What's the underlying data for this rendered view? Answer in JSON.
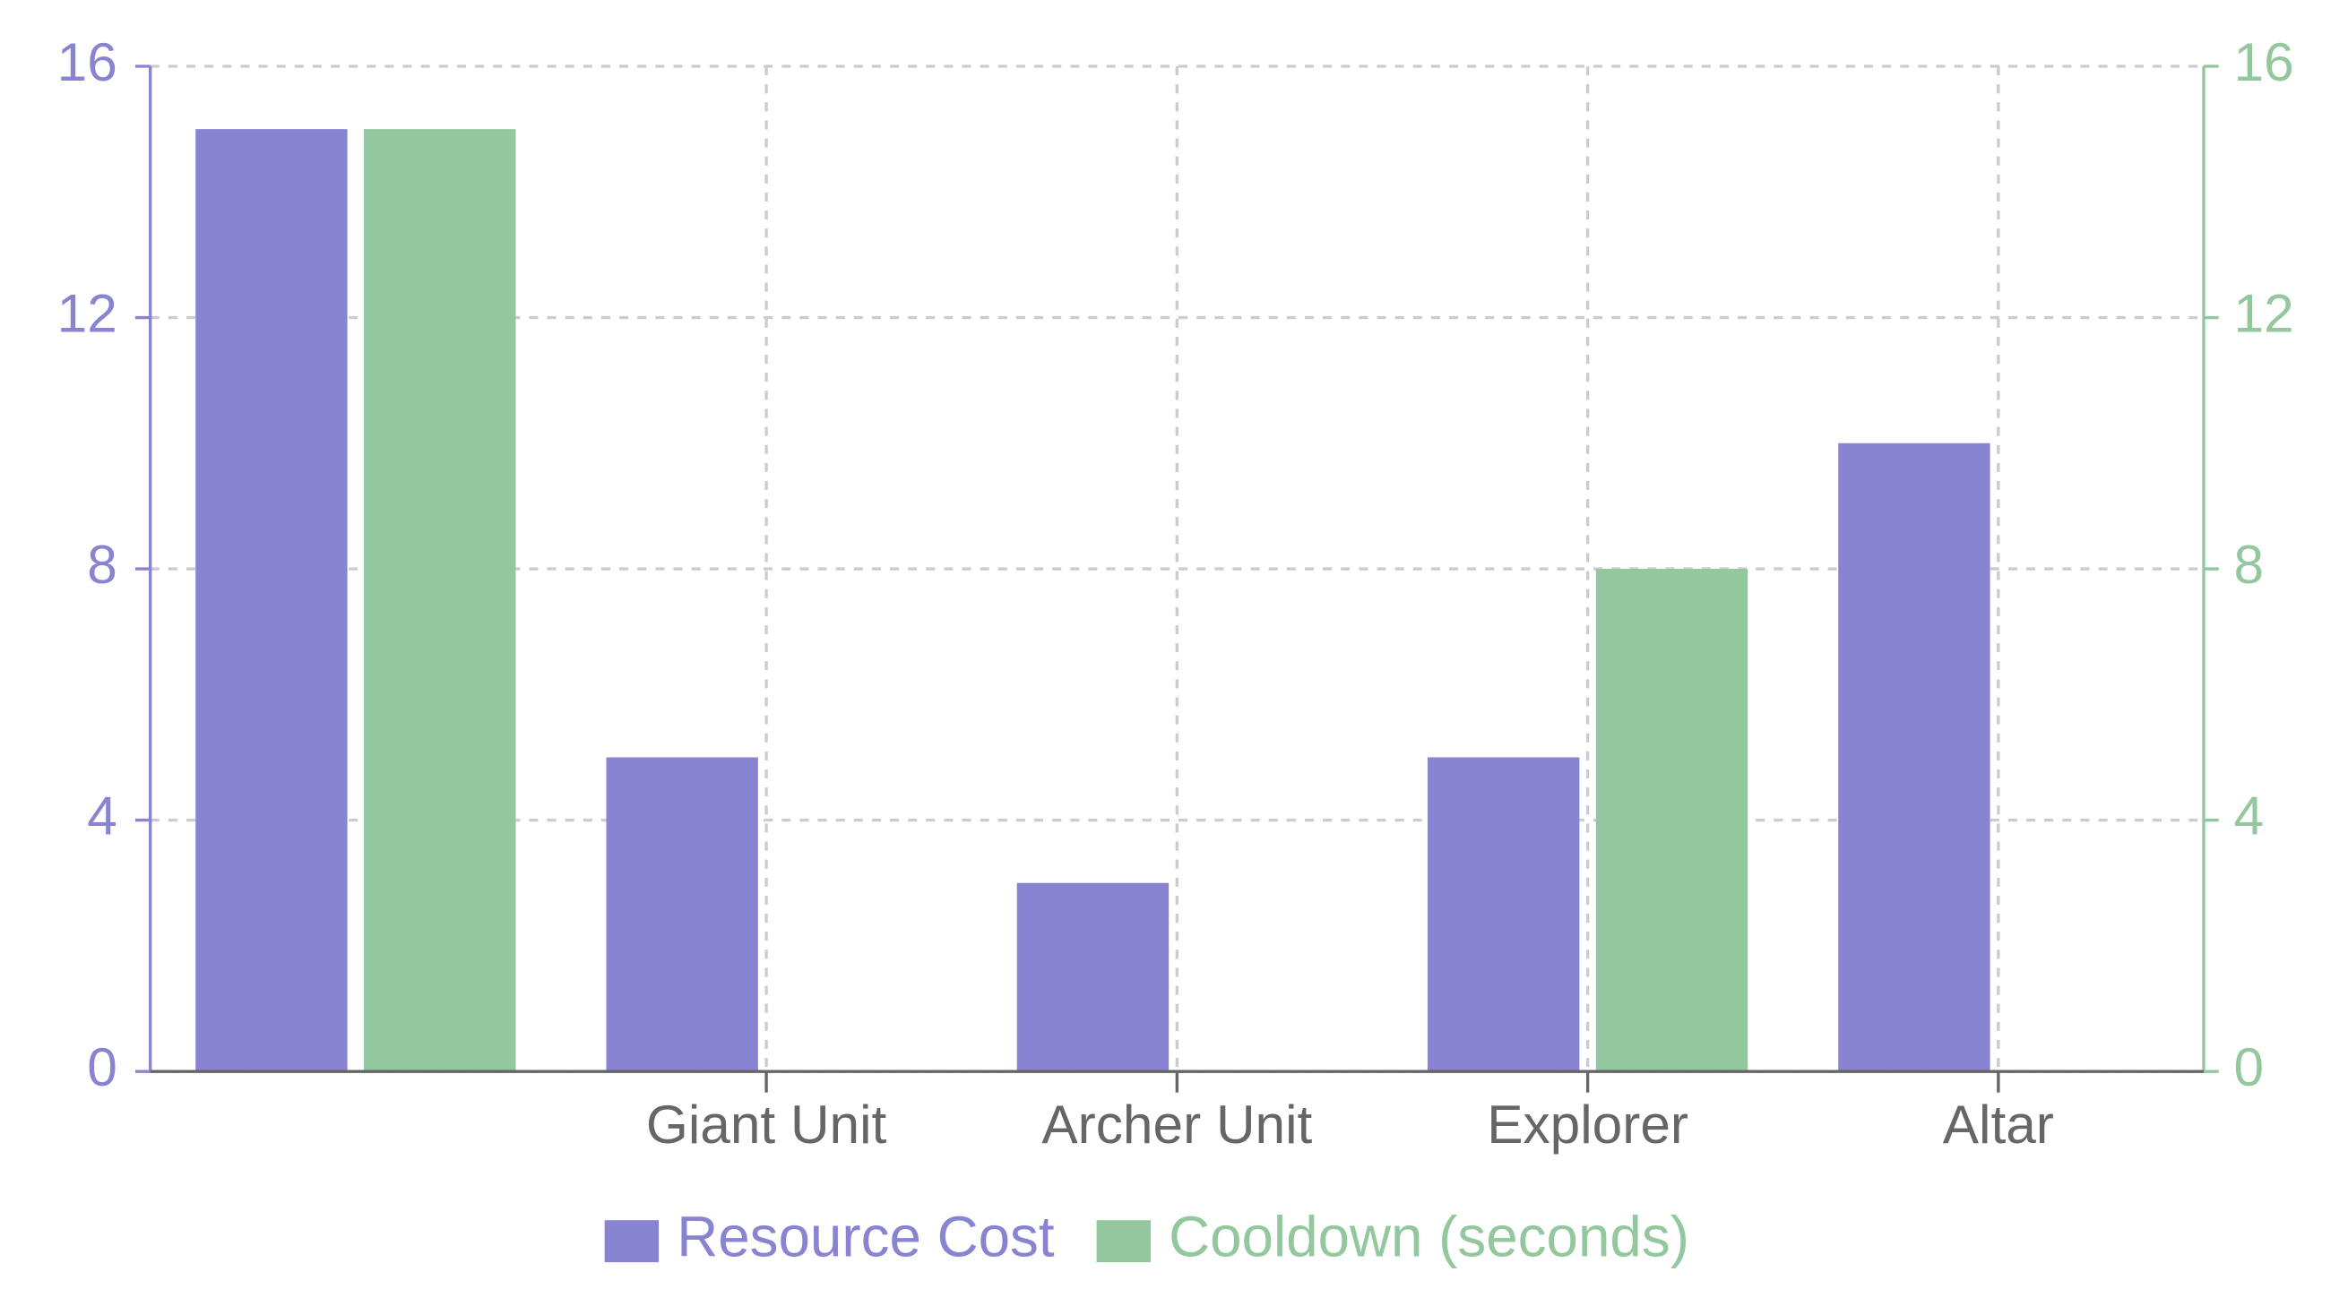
{
  "chart_data": {
    "type": "bar",
    "categories": [
      null,
      "Giant Unit",
      "Archer Unit",
      "Explorer",
      "Altar"
    ],
    "series": [
      {
        "name": "Resource Cost",
        "color": "#8884d2",
        "values": [
          15,
          5,
          3,
          5,
          10
        ]
      },
      {
        "name": "Cooldown (seconds)",
        "color": "#93c89e",
        "axis": "y2",
        "values": [
          15,
          null,
          null,
          8,
          null
        ]
      }
    ],
    "ylim": [
      0,
      16
    ],
    "yticks": [
      0,
      4,
      8,
      12,
      16
    ],
    "y2lim": [
      0,
      16
    ],
    "y2ticks": [
      0,
      4,
      8,
      12,
      16
    ],
    "grid": true,
    "legend": "bottom"
  }
}
